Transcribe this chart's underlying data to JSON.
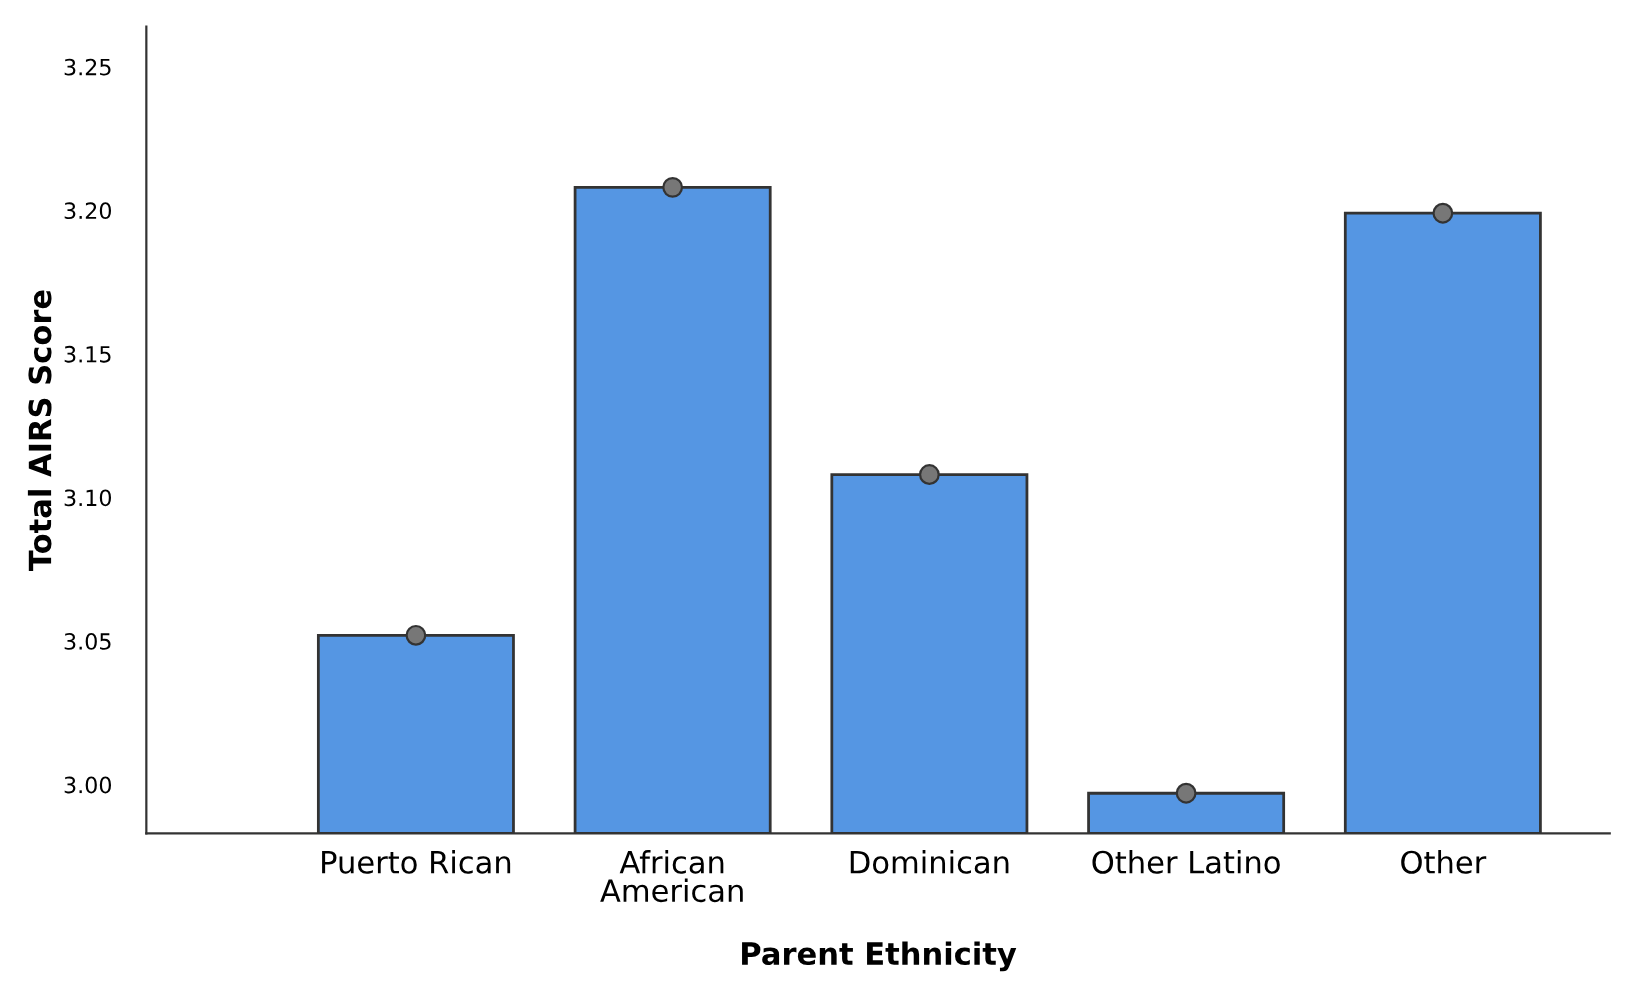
{
  "chart_data": {
    "type": "bar",
    "xlabel": "Parent Ethnicity",
    "ylabel": "Total AIRS Score",
    "categories": [
      "Puerto Rican",
      "African\nAmerican",
      "Dominican",
      "Other Latino",
      "Other"
    ],
    "series": [
      {
        "type": "bar",
        "color": "#5596e3",
        "values": [
          3.052,
          3.208,
          3.108,
          2.997,
          3.199
        ]
      },
      {
        "type": "scatter",
        "color": "#777777",
        "x": [
          "Puerto Rican",
          "African\nAmerican",
          "Dominican",
          "Other Latino",
          "Other"
        ],
        "values": [
          3.052,
          3.208,
          3.108,
          2.997,
          3.199
        ]
      }
    ],
    "ylim": [
      2.983,
      3.264
    ],
    "yticks": [
      {
        "value": 3.0,
        "label": "3.00"
      },
      {
        "value": 3.05,
        "label": "3.05"
      },
      {
        "value": 3.1,
        "label": "3.10"
      },
      {
        "value": 3.15,
        "label": "3.15"
      },
      {
        "value": 3.2,
        "label": "3.20"
      },
      {
        "value": 3.25,
        "label": "3.25"
      }
    ],
    "marker": "circle",
    "grid": false,
    "legend": false
  }
}
